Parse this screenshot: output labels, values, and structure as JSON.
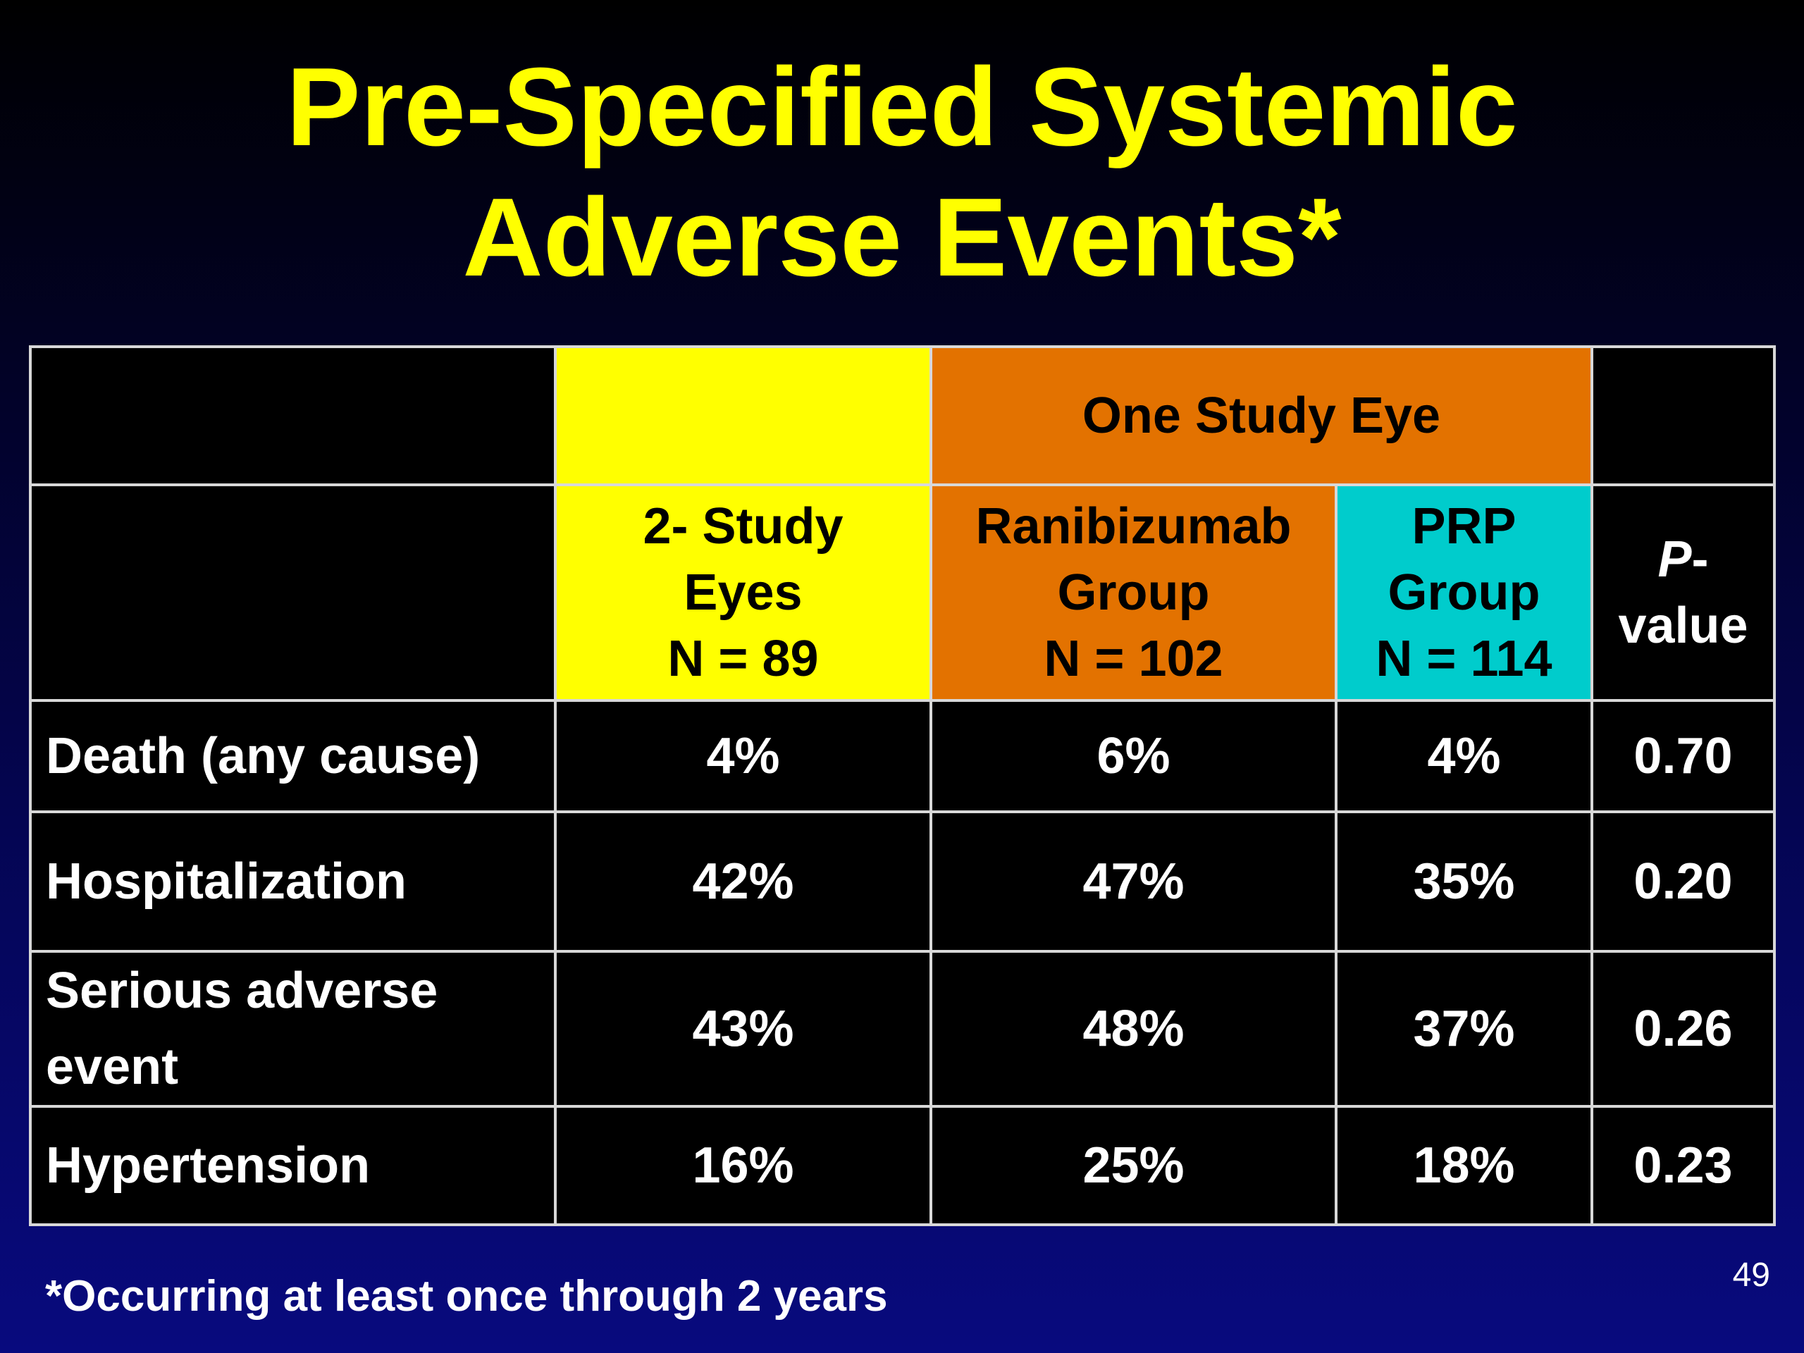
{
  "slide": {
    "title_line1": "Pre-Specified Systemic",
    "title_line2": "Adverse Events*",
    "footnote": "*Occurring at least once through 2 years",
    "page_number": "49"
  },
  "table": {
    "group_header": "One Study Eye",
    "columns": {
      "two_eyes": {
        "line1": "2- Study",
        "line2": "Eyes",
        "line3": "N = 89"
      },
      "ranibizumab": {
        "line1": "Ranibizumab",
        "line2": "Group",
        "line3": "N = 102"
      },
      "prp": {
        "line1": "PRP",
        "line2": "Group",
        "line3": "N = 114"
      },
      "pvalue": {
        "line1_italic": "P",
        "line1_rest": "-",
        "line2": "value"
      }
    },
    "rows": [
      {
        "label": "Death (any cause)",
        "two_eyes": "4%",
        "ranibizumab": "6%",
        "prp": "4%",
        "p": "0.70"
      },
      {
        "label": "Hospitalization",
        "two_eyes": "42%",
        "ranibizumab": "47%",
        "prp": "35%",
        "p": "0.20"
      },
      {
        "label_line1": "Serious adverse",
        "label_line2": "event",
        "two_eyes": "43%",
        "ranibizumab": "48%",
        "prp": "37%",
        "p": "0.26"
      },
      {
        "label": "Hypertension",
        "two_eyes": "16%",
        "ranibizumab": "25%",
        "prp": "18%",
        "p": "0.23"
      }
    ]
  },
  "colors": {
    "title": "#ffff00",
    "two_eyes_header": "#ffff00",
    "ranibizumab_header": "#e37200",
    "prp_header": "#00cccc",
    "table_background": "#000000",
    "slide_background": "#05065e"
  }
}
